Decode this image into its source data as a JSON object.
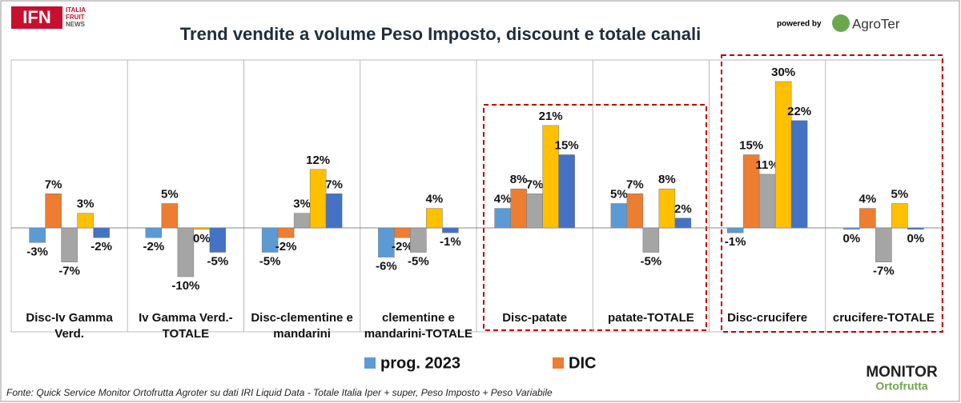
{
  "chart_data": {
    "type": "bar",
    "title": "Trend vendite a volume Peso Imposto, discount e totale canali",
    "brand": {
      "logo": "IFN",
      "logo_sub": [
        "ITALIA",
        "FRUIT",
        "NEWS"
      ],
      "powered": "powered by",
      "partner": "AgroTer",
      "monitor": "MONITOR",
      "monitor_sub": "Ortofrutta"
    },
    "source": "Fonte: Quick Service Monitor Ortofrutta Agroter su dati IRI Liquid Data - Totale Italia Iper + super, Peso Imposto + Peso Variabile",
    "categories": [
      "Disc-Iv Gamma Verd.",
      "Iv Gamma Verd.-TOTALE",
      "Disc-clementine e mandarini",
      "clementine e mandarini-TOTALE",
      "Disc-patate",
      "patate-TOTALE",
      "Disc-crucifere",
      "crucifere-TOTALE"
    ],
    "series": [
      {
        "name": "prog. 2023",
        "color": "#5b9bd5",
        "values": [
          -3,
          -2,
          -5,
          -6,
          4,
          5,
          -1,
          -0.3
        ],
        "value_labels": [
          "-3%",
          "-2%",
          "-5%",
          "-6%",
          "4%",
          "5%",
          "-1%",
          "0%"
        ]
      },
      {
        "name": "DIC",
        "color": "#ed7d31",
        "values": [
          7,
          5,
          -2,
          -2,
          8,
          7,
          15,
          4
        ],
        "value_labels": [
          "7%",
          "5%",
          "-2%",
          "-2%",
          "8%",
          "7%",
          "15%",
          "4%"
        ]
      },
      {
        "color": "#a5a5a5",
        "values": [
          -7,
          -10,
          3,
          -5,
          7,
          -5,
          11,
          -7
        ],
        "value_labels": [
          "-7%",
          "-10%",
          "3%",
          "-5%",
          "7%",
          "-5%",
          "11%",
          "-7%"
        ]
      },
      {
        "color": "#ffc000",
        "values": [
          3,
          -0.3,
          12,
          4,
          21,
          8,
          30,
          5
        ],
        "value_labels": [
          "3%",
          "0%",
          "12%",
          "4%",
          "21%",
          "8%",
          "30%",
          "5%"
        ]
      },
      {
        "color": "#4472c4",
        "values": [
          -2,
          -5,
          7,
          -1,
          15,
          2,
          22,
          -0.3
        ],
        "value_labels": [
          "-2%",
          "-5%",
          "7%",
          "-1%",
          "15%",
          "2%",
          "22%",
          "0%"
        ]
      }
    ],
    "legend": "bottom"
  }
}
